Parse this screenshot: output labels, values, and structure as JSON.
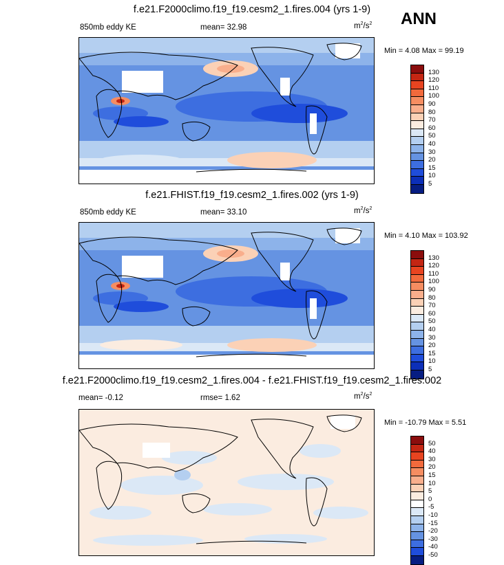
{
  "season": "ANN",
  "panels": [
    {
      "title": "f.e21.F2000climo.f19_f19.cesm2_1.fires.004 (yrs 1-9)",
      "left_label": "850mb eddy KE",
      "stat_label": "mean=  32.98",
      "units_base": "m",
      "units_sup1": "2",
      "units_mid": "/s",
      "units_sup2": "2",
      "minmax": "Min =   4.08 Max =  99.19",
      "colorbar": {
        "levels": [
          "130",
          "120",
          "110",
          "100",
          "90",
          "80",
          "70",
          "60",
          "50",
          "40",
          "30",
          "20",
          "15",
          "10",
          "5"
        ],
        "colors": [
          "#8b0d0d",
          "#c42613",
          "#e84420",
          "#f26a3c",
          "#f68d61",
          "#f9ae8c",
          "#fbd1b6",
          "#fbece0",
          "#dbe8f6",
          "#b4cff0",
          "#8db3ea",
          "#6593e2",
          "#3d6ee0",
          "#1f4ddb",
          "#0c2fb8",
          "#061d82"
        ]
      }
    },
    {
      "title": "f.e21.FHIST.f19_f19.cesm2_1.fires.002 (yrs 1-9)",
      "left_label": "850mb eddy KE",
      "stat_label": "mean=  33.10",
      "units_base": "m",
      "units_sup1": "2",
      "units_mid": "/s",
      "units_sup2": "2",
      "minmax": "Min =   4.10 Max = 103.92",
      "colorbar": {
        "levels": [
          "130",
          "120",
          "110",
          "100",
          "90",
          "80",
          "70",
          "60",
          "50",
          "40",
          "30",
          "20",
          "15",
          "10",
          "5"
        ],
        "colors": [
          "#8b0d0d",
          "#c42613",
          "#e84420",
          "#f26a3c",
          "#f68d61",
          "#f9ae8c",
          "#fbd1b6",
          "#fbece0",
          "#dbe8f6",
          "#b4cff0",
          "#8db3ea",
          "#6593e2",
          "#3d6ee0",
          "#1f4ddb",
          "#0c2fb8",
          "#061d82"
        ]
      }
    },
    {
      "title": "f.e21.F2000climo.f19_f19.cesm2_1.fires.004 - f.e21.FHIST.f19_f19.cesm2_1.fires.002",
      "left_label": "mean=  -0.12",
      "stat_label": "rmse=   1.62",
      "units_base": "m",
      "units_sup1": "2",
      "units_mid": "/s",
      "units_sup2": "2",
      "minmax": "Min = -10.79 Max =   5.51",
      "colorbar": {
        "levels": [
          "50",
          "40",
          "30",
          "20",
          "15",
          "10",
          "5",
          "0",
          "-5",
          "-10",
          "-15",
          "-20",
          "-30",
          "-40",
          "-50"
        ],
        "colors": [
          "#8b0d0d",
          "#c42613",
          "#e84420",
          "#f26a3c",
          "#f68d61",
          "#f9ae8c",
          "#fbd1b6",
          "#fbece0",
          "#ffffff",
          "#dbe8f6",
          "#b4cff0",
          "#8db3ea",
          "#6593e2",
          "#3d6ee0",
          "#1f4ddb",
          "#061d82"
        ]
      }
    }
  ]
}
